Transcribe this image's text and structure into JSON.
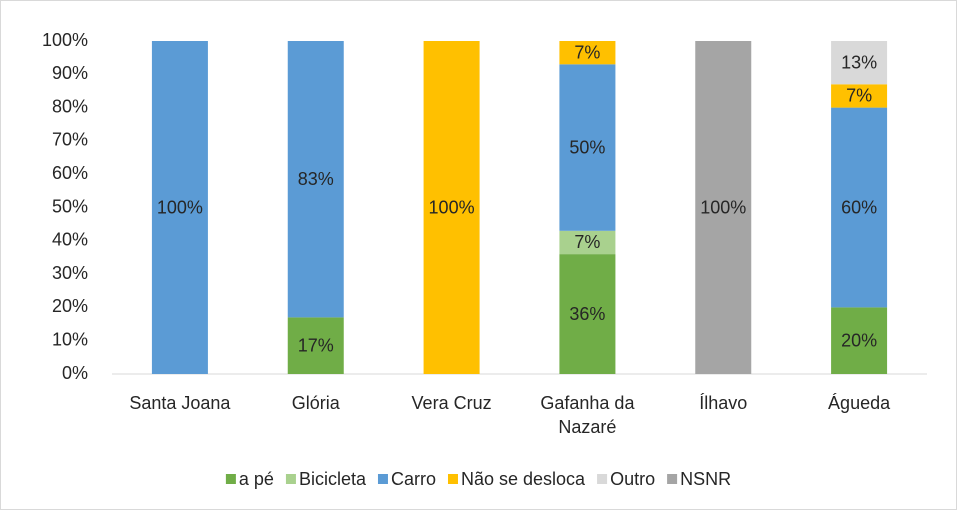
{
  "chart_data": {
    "type": "stacked_bar",
    "categories": [
      "Santa Joana",
      "Glória",
      "Vera Cruz",
      "Gafanha da Nazaré",
      "Ílhavo",
      "Águeda"
    ],
    "series": [
      {
        "name": "a pé",
        "color": "#70ad47",
        "values": [
          0,
          17,
          0,
          36,
          0,
          20
        ],
        "value_labels": [
          null,
          "17%",
          null,
          "36%",
          null,
          "20%"
        ]
      },
      {
        "name": "Bicicleta",
        "color": "#a9d18e",
        "values": [
          0,
          0,
          0,
          7,
          0,
          0
        ],
        "value_labels": [
          null,
          null,
          null,
          "7%",
          null,
          null
        ]
      },
      {
        "name": "Carro",
        "color": "#5b9bd5",
        "values": [
          100,
          83,
          0,
          50,
          0,
          60
        ],
        "value_labels": [
          "100%",
          "83%",
          null,
          "50%",
          null,
          "60%"
        ]
      },
      {
        "name": "Não se desloca",
        "color": "#ffc000",
        "values": [
          0,
          0,
          100,
          7,
          0,
          7
        ],
        "value_labels": [
          null,
          null,
          "100%",
          "7%",
          null,
          "7%"
        ]
      },
      {
        "name": "Outro",
        "color": "#d9d9d9",
        "values": [
          0,
          0,
          0,
          0,
          0,
          13
        ],
        "value_labels": [
          null,
          null,
          null,
          null,
          null,
          "13%"
        ]
      },
      {
        "name": "NSNR",
        "color": "#a5a5a5",
        "values": [
          0,
          0,
          0,
          0,
          100,
          0
        ],
        "value_labels": [
          null,
          null,
          null,
          null,
          "100%",
          null
        ]
      }
    ],
    "ylim": [
      0,
      100
    ],
    "yticks": [
      {
        "value": 0,
        "label": "0%"
      },
      {
        "value": 10,
        "label": "10%"
      },
      {
        "value": 20,
        "label": "20%"
      },
      {
        "value": 30,
        "label": "30%"
      },
      {
        "value": 40,
        "label": "40%"
      },
      {
        "value": 50,
        "label": "50%"
      },
      {
        "value": 60,
        "label": "60%"
      },
      {
        "value": 70,
        "label": "70%"
      },
      {
        "value": 80,
        "label": "80%"
      },
      {
        "value": 90,
        "label": "90%"
      },
      {
        "value": 100,
        "label": "100%"
      }
    ],
    "legend": "bottom"
  }
}
